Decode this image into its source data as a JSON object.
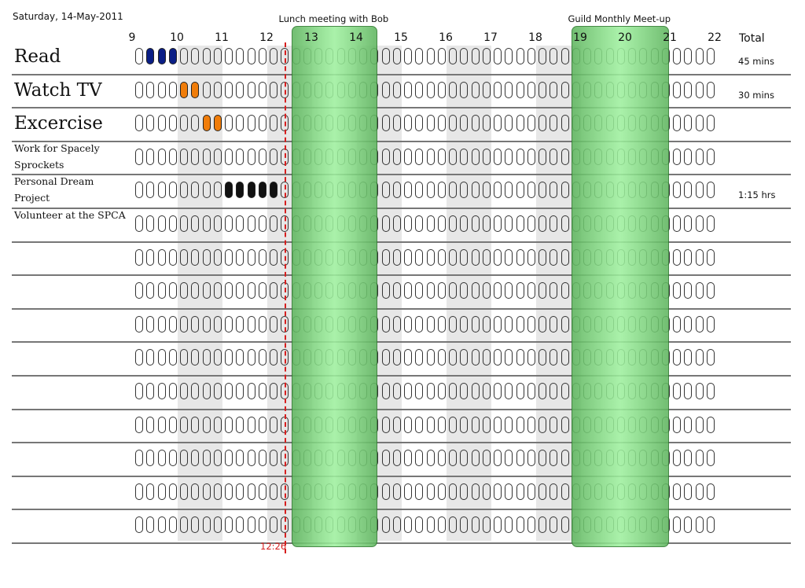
{
  "header": {
    "date": "Saturday, 14-May-2011",
    "total_label": "Total"
  },
  "hours": [
    "9",
    "10",
    "11",
    "12",
    "13",
    "14",
    "15",
    "16",
    "17",
    "18",
    "19",
    "20",
    "21",
    "22"
  ],
  "slots_per_hour": 4,
  "events": [
    {
      "title": "Lunch meeting with Bob",
      "start_hour": 12.5,
      "end_hour": 14.25
    },
    {
      "title": "Guild Monthly Meet-up",
      "start_hour": 18.75,
      "end_hour": 20.75
    }
  ],
  "now": {
    "time": "12:26",
    "hour_value": 12.43
  },
  "colors": {
    "blue": "#0a1e86",
    "orange": "#f07d0a",
    "black": "#111111",
    "event_green": "#8de08d",
    "now_line": "#d61f1f",
    "shade": "#e7e7e7"
  },
  "activities": [
    {
      "name": "Read",
      "size": "big",
      "total": "45 mins",
      "filled": [
        {
          "start": 9.25,
          "end": 10.0,
          "color": "blue"
        }
      ]
    },
    {
      "name": "Watch TV",
      "size": "big",
      "total": "30 mins",
      "filled": [
        {
          "start": 10.0,
          "end": 10.5,
          "color": "orange"
        }
      ]
    },
    {
      "name": "Excercise",
      "size": "big",
      "total": "",
      "filled": [
        {
          "start": 10.5,
          "end": 11.0,
          "color": "orange"
        }
      ]
    },
    {
      "name": "Work for Spacely\nSprockets",
      "size": "small",
      "total": "",
      "filled": []
    },
    {
      "name": "Personal Dream\nProject",
      "size": "small",
      "total": "1:15 hrs",
      "filled": [
        {
          "start": 11.0,
          "end": 12.25,
          "color": "black"
        }
      ]
    },
    {
      "name": "Volunteer at the SPCA",
      "size": "small",
      "total": "",
      "filled": []
    },
    {
      "name": "",
      "size": "small",
      "total": "",
      "filled": []
    },
    {
      "name": "",
      "size": "small",
      "total": "",
      "filled": []
    },
    {
      "name": "",
      "size": "small",
      "total": "",
      "filled": []
    },
    {
      "name": "",
      "size": "small",
      "total": "",
      "filled": []
    },
    {
      "name": "",
      "size": "small",
      "total": "",
      "filled": []
    },
    {
      "name": "",
      "size": "small",
      "total": "",
      "filled": []
    },
    {
      "name": "",
      "size": "small",
      "total": "",
      "filled": []
    },
    {
      "name": "",
      "size": "small",
      "total": "",
      "filled": []
    },
    {
      "name": "",
      "size": "small",
      "total": "",
      "filled": []
    }
  ]
}
